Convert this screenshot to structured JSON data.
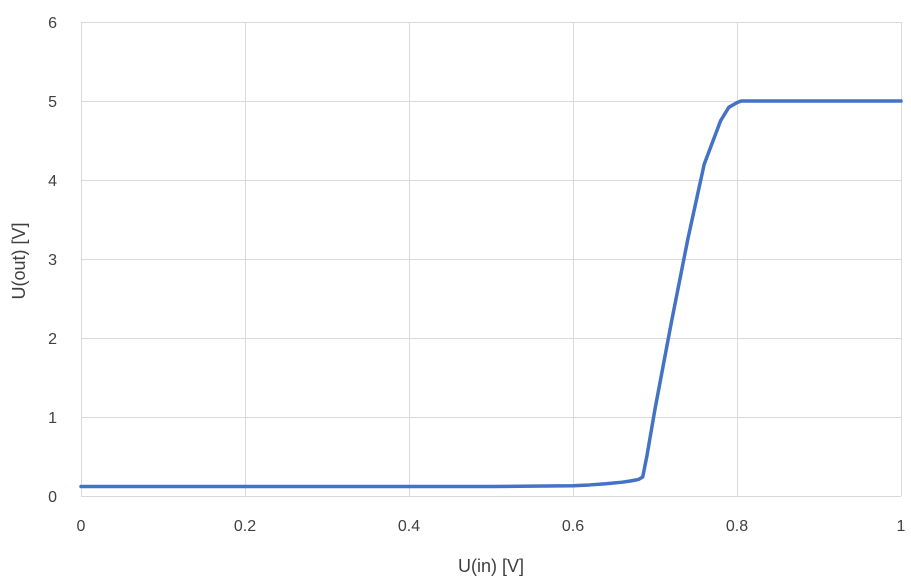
{
  "chart_data": {
    "type": "line",
    "title": "",
    "xlabel": "U(in) [V]",
    "ylabel": "U(out) [V]",
    "xlim": [
      0,
      1
    ],
    "ylim": [
      0,
      6
    ],
    "x_ticks": [
      0,
      0.2,
      0.4,
      0.6,
      0.8,
      1
    ],
    "x_tick_labels": [
      "0",
      "0.2",
      "0.4",
      "0.6",
      "0.8",
      "1"
    ],
    "y_ticks": [
      0,
      1,
      2,
      3,
      4,
      5,
      6
    ],
    "y_tick_labels": [
      "0",
      "1",
      "2",
      "3",
      "4",
      "5",
      "6"
    ],
    "grid": true,
    "legend": "none",
    "colors": {
      "series": "#4472C4",
      "grid": "#D9D9D9",
      "text": "#404040"
    },
    "series": [
      {
        "x": [
          0,
          0.1,
          0.2,
          0.3,
          0.4,
          0.5,
          0.55,
          0.6,
          0.62,
          0.64,
          0.66,
          0.67,
          0.68,
          0.685,
          0.69,
          0.7,
          0.72,
          0.74,
          0.76,
          0.78,
          0.79,
          0.8,
          0.805,
          0.81,
          0.85,
          0.9,
          0.95,
          1.0
        ],
        "y": [
          0.12,
          0.12,
          0.12,
          0.12,
          0.12,
          0.12,
          0.125,
          0.13,
          0.14,
          0.155,
          0.175,
          0.19,
          0.21,
          0.24,
          0.5,
          1.1,
          2.2,
          3.25,
          4.2,
          4.75,
          4.92,
          4.98,
          5.0,
          5.0,
          5.0,
          5.0,
          5.0,
          5.0
        ]
      }
    ]
  }
}
